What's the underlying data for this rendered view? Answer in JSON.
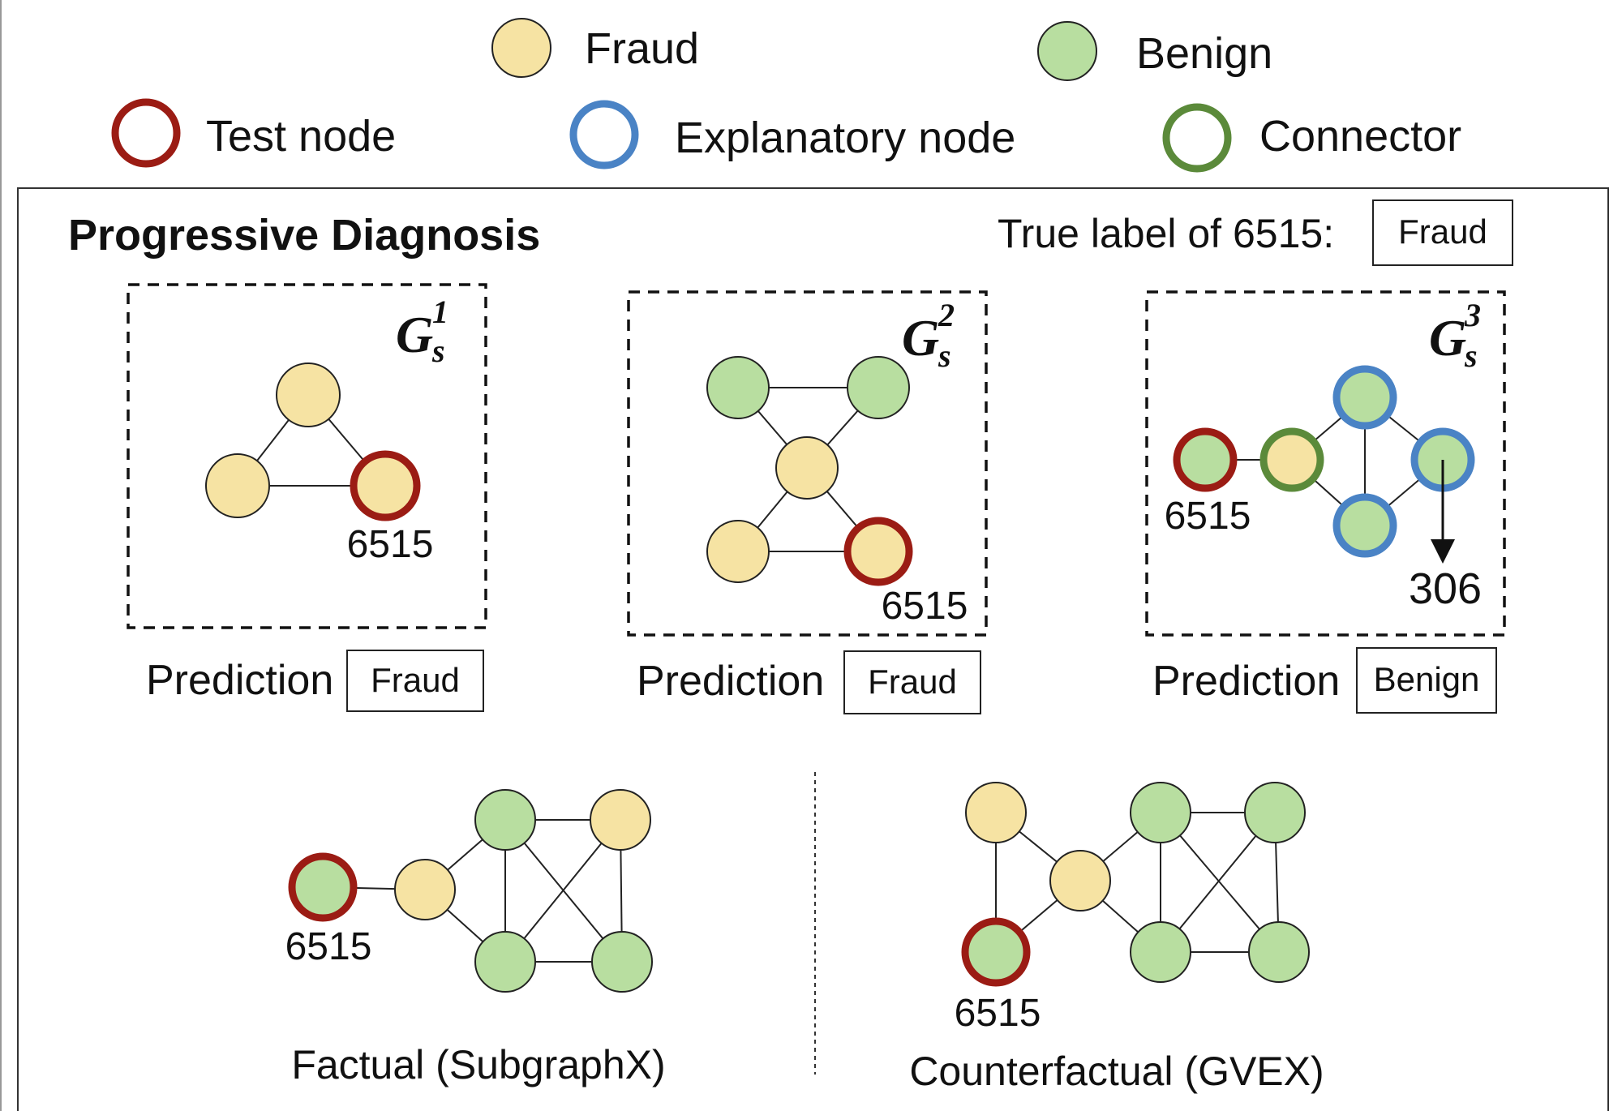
{
  "colors": {
    "fraud": "#f6e3a3",
    "benign": "#b8dea0",
    "test": "#9b1c14",
    "explanatory": "#4a83c5",
    "connector": "#5b8a3a"
  },
  "legend": {
    "fraud": "Fraud",
    "benign": "Benign",
    "test_node": "Test node",
    "explanatory_node": "Explanatory node",
    "connector": "Connector"
  },
  "panel": {
    "title": "Progressive Diagnosis",
    "true_label_text": "True label of 6515:",
    "true_label_value": "Fraud"
  },
  "subgraphs": [
    {
      "symbol": "G",
      "sub": "s",
      "sup": "1",
      "node_label": "6515",
      "prediction_label": "Prediction",
      "prediction": "Fraud"
    },
    {
      "symbol": "G",
      "sub": "s",
      "sup": "2",
      "node_label": "6515",
      "prediction_label": "Prediction",
      "prediction": "Fraud"
    },
    {
      "symbol": "G",
      "sub": "s",
      "sup": "3",
      "node_label": "6515",
      "extra_label": "306",
      "prediction_label": "Prediction",
      "prediction": "Benign"
    }
  ],
  "factual": {
    "node_label": "6515",
    "caption": "Factual (SubgraphX)"
  },
  "counterfactual": {
    "node_label": "6515",
    "caption": "Counterfactual (GVEX)"
  }
}
